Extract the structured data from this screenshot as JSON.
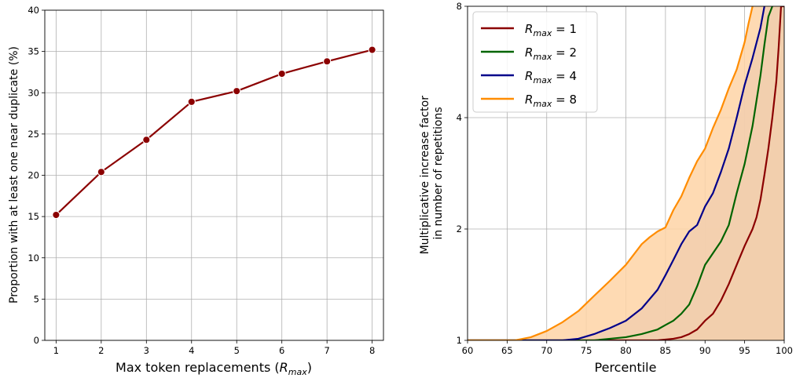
{
  "chart_data": [
    {
      "type": "line",
      "xlabel_prefix": "Max token replacements (",
      "xlabel_var": "R",
      "xlabel_sub": "max",
      "xlabel_suffix": ")",
      "ylabel": "Proportion with at least one near duplicate (%)",
      "x": [
        1,
        2,
        3,
        4,
        5,
        6,
        7,
        8
      ],
      "series": [
        {
          "values": [
            15.2,
            20.4,
            24.3,
            28.9,
            30.2,
            32.3,
            33.8,
            35.2
          ],
          "color": "#8b0000"
        }
      ],
      "xticks": [
        "1",
        "2",
        "3",
        "4",
        "5",
        "6",
        "7",
        "8"
      ],
      "yticks": [
        "0",
        "5",
        "10",
        "15",
        "20",
        "25",
        "30",
        "35",
        "40"
      ],
      "xlim": [
        0.75,
        8.25
      ],
      "ylim": [
        0,
        40
      ],
      "grid": true
    },
    {
      "type": "area",
      "xlabel": "Percentile",
      "ylabel_line1": "Multiplicative increase factor",
      "ylabel_line2": "in number of repetitions",
      "xlim": [
        60,
        100
      ],
      "ylim": [
        1,
        8
      ],
      "yscale": "log2",
      "xticks": [
        "60",
        "65",
        "70",
        "75",
        "80",
        "85",
        "90",
        "95",
        "100"
      ],
      "yticks": [
        "1",
        "2",
        "4",
        "8"
      ],
      "grid": true,
      "legend_loc": "top-left",
      "series": [
        {
          "label_var": "R",
          "label_sub": "max",
          "label_eq": " = 1",
          "color": "#8b0000",
          "fill": "#d4a5a5",
          "x": [
            60,
            84,
            86,
            87,
            88,
            89,
            90,
            91,
            92,
            93,
            94,
            95,
            96,
            96.5,
            97,
            97.5,
            98,
            98.5,
            99,
            99.3,
            99.6,
            100
          ],
          "y": [
            1,
            1,
            1.01,
            1.02,
            1.04,
            1.07,
            1.13,
            1.18,
            1.28,
            1.42,
            1.6,
            1.8,
            2.0,
            2.15,
            2.4,
            2.8,
            3.3,
            4.0,
            5.0,
            6.2,
            8.0,
            8.0
          ]
        },
        {
          "label_var": "R",
          "label_sub": "max",
          "label_eq": " = 2",
          "color": "#006400",
          "fill": "#a6cda6",
          "x": [
            60,
            76,
            78,
            80,
            82,
            84,
            85,
            86,
            87,
            88,
            89,
            90,
            91,
            92,
            93,
            94,
            95,
            96,
            97,
            97.5,
            98,
            98.5
          ],
          "y": [
            1,
            1,
            1.01,
            1.02,
            1.04,
            1.07,
            1.1,
            1.13,
            1.18,
            1.25,
            1.4,
            1.6,
            1.72,
            1.85,
            2.05,
            2.5,
            3.0,
            3.8,
            5.2,
            6.3,
            7.5,
            8.0
          ]
        },
        {
          "label_var": "R",
          "label_sub": "max",
          "label_eq": " = 4",
          "color": "#00008b",
          "fill": "#b0b0e0",
          "x": [
            60,
            72,
            74,
            76,
            78,
            80,
            82,
            84,
            85,
            86,
            87,
            88,
            89,
            90,
            91,
            92,
            93,
            94,
            95,
            96,
            97,
            97.5
          ],
          "y": [
            1,
            1,
            1.01,
            1.04,
            1.08,
            1.13,
            1.22,
            1.37,
            1.5,
            1.65,
            1.82,
            1.97,
            2.05,
            2.3,
            2.5,
            2.85,
            3.3,
            4.0,
            4.9,
            5.8,
            7.0,
            8.0
          ]
        },
        {
          "label_var": "R",
          "label_sub": "max",
          "label_eq": " = 8",
          "color": "#ff8c00",
          "fill": "#fed3a6",
          "x": [
            60,
            66,
            68,
            70,
            72,
            74,
            76,
            78,
            80,
            82,
            83,
            84,
            85,
            86,
            87,
            88,
            89,
            90,
            91,
            92,
            93,
            94,
            95,
            95.5,
            96
          ],
          "y": [
            1,
            1,
            1.02,
            1.06,
            1.12,
            1.2,
            1.32,
            1.45,
            1.6,
            1.82,
            1.9,
            1.97,
            2.02,
            2.25,
            2.45,
            2.75,
            3.05,
            3.3,
            3.75,
            4.2,
            4.8,
            5.4,
            6.4,
            7.2,
            8.0
          ]
        }
      ]
    }
  ]
}
